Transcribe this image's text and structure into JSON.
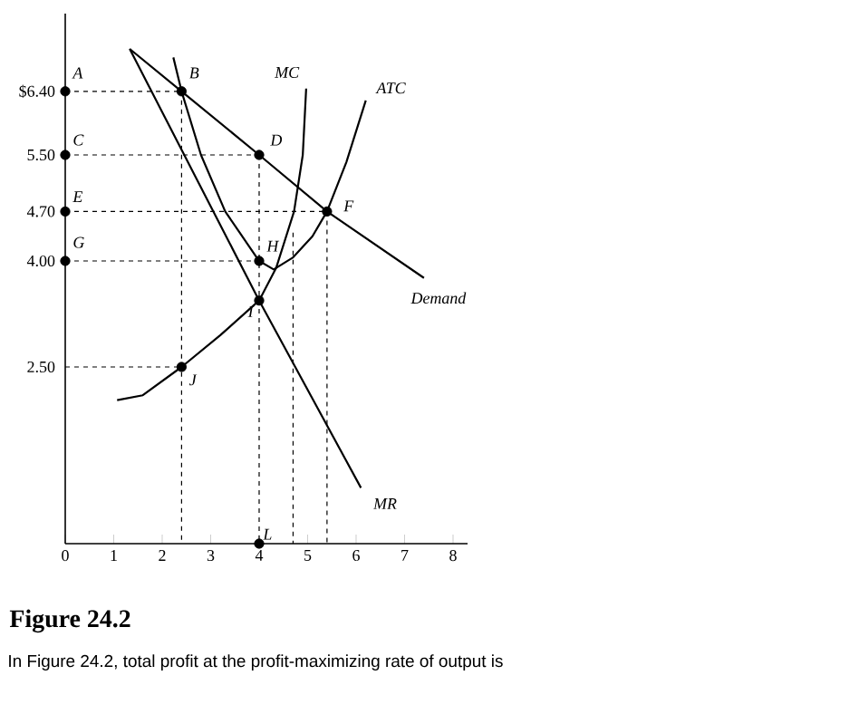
{
  "chart_data": {
    "type": "line",
    "title": "Figure 24.2",
    "subtitle": "In Figure 24.2, total profit at the profit-maximizing rate of output is",
    "xlim": [
      0,
      8.3
    ],
    "ylim": [
      0,
      7.5
    ],
    "xticks": [
      0,
      1,
      2,
      3,
      4,
      5,
      6,
      7,
      8
    ],
    "yticks": [
      {
        "value": 2.5,
        "label": "2.50"
      },
      {
        "value": 4.0,
        "label": "4.00"
      },
      {
        "value": 4.7,
        "label": "4.70"
      },
      {
        "value": 5.5,
        "label": "5.50"
      },
      {
        "value": 6.4,
        "label": "$6.40"
      }
    ],
    "series": [
      {
        "name": "Demand",
        "color": "#000000",
        "x": [
          1.33,
          2.4,
          4,
          5.4,
          7.4
        ],
        "values": [
          7.0,
          6.4,
          5.5,
          4.7,
          3.76
        ]
      },
      {
        "name": "MR",
        "color": "#000000",
        "x": [
          1.33,
          4,
          6.1
        ],
        "values": [
          7.0,
          3.44,
          0.79
        ]
      },
      {
        "name": "MC",
        "color": "#000000",
        "x": [
          1.07,
          1.6,
          2.4,
          3.2,
          4,
          4.35,
          4.72,
          4.9,
          4.97
        ],
        "values": [
          2.03,
          2.1,
          2.5,
          2.95,
          3.44,
          3.9,
          4.7,
          5.5,
          6.44
        ]
      },
      {
        "name": "ATC",
        "color": "#000000",
        "x": [
          2.23,
          2.4,
          2.8,
          3.3,
          4,
          4.3,
          4.7,
          5.1,
          5.4,
          5.8,
          6.2
        ],
        "values": [
          6.88,
          6.4,
          5.5,
          4.7,
          4.0,
          3.88,
          4.05,
          4.35,
          4.7,
          5.4,
          6.27
        ]
      },
      {
        "color": "#000000",
        "line_style": "dashed",
        "x": [
          0,
          2.4
        ],
        "values": [
          6.4,
          6.4
        ]
      },
      {
        "color": "#000000",
        "line_style": "dashed",
        "x": [
          0,
          4
        ],
        "values": [
          5.5,
          5.5
        ]
      },
      {
        "color": "#000000",
        "line_style": "dashed",
        "x": [
          0,
          5.4
        ],
        "values": [
          4.7,
          4.7
        ]
      },
      {
        "color": "#000000",
        "line_style": "dashed",
        "x": [
          0,
          4
        ],
        "values": [
          4.0,
          4.0
        ]
      },
      {
        "color": "#000000",
        "line_style": "dashed",
        "x": [
          0,
          2.4
        ],
        "values": [
          2.5,
          2.5
        ]
      },
      {
        "color": "#000000",
        "line_style": "dashed",
        "x": [
          2.4,
          2.4
        ],
        "values": [
          6.4,
          0
        ]
      },
      {
        "color": "#000000",
        "line_style": "dashed",
        "x": [
          4,
          4
        ],
        "values": [
          5.5,
          0
        ]
      },
      {
        "color": "#000000",
        "line_style": "dashed",
        "x": [
          4.7,
          4.7
        ],
        "values": [
          4.4,
          0
        ]
      },
      {
        "color": "#000000",
        "line_style": "dashed",
        "x": [
          5.4,
          5.4
        ],
        "values": [
          4.7,
          0
        ]
      },
      {
        "type": "scatter",
        "marker": "circle",
        "color": "#000000",
        "x": [
          0,
          0,
          0,
          0,
          2.4,
          4,
          5.4,
          4,
          4,
          2.4,
          4
        ],
        "values": [
          6.4,
          5.5,
          4.7,
          4.0,
          6.4,
          5.5,
          4.7,
          4.0,
          3.44,
          2.5,
          0
        ]
      }
    ],
    "annotations": [
      {
        "text": "A",
        "x": 0,
        "y": 6.4
      },
      {
        "text": "B",
        "x": 2.4,
        "y": 6.4
      },
      {
        "text": "C",
        "x": 0,
        "y": 5.5
      },
      {
        "text": "D",
        "x": 4,
        "y": 5.5
      },
      {
        "text": "E",
        "x": 0,
        "y": 4.7
      },
      {
        "text": "F",
        "x": 5.4,
        "y": 4.7
      },
      {
        "text": "G",
        "x": 0,
        "y": 4.0
      },
      {
        "text": "H",
        "x": 4,
        "y": 4.0
      },
      {
        "text": "I",
        "x": 4,
        "y": 3.44
      },
      {
        "text": "J",
        "x": 2.4,
        "y": 2.5
      },
      {
        "text": "L",
        "x": 4,
        "y": 0
      }
    ]
  }
}
